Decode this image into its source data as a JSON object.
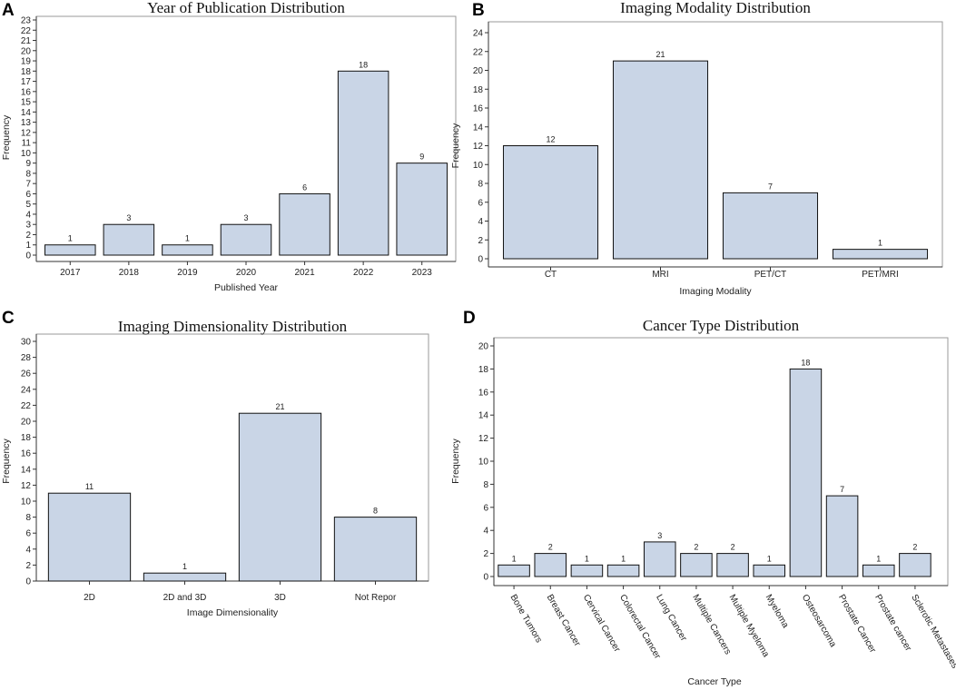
{
  "chart_data": [
    {
      "panel": "A",
      "type": "bar",
      "title": "Year of Publication Distribution",
      "xlabel": "Published Year",
      "ylabel": "Frequency",
      "categories": [
        "2017",
        "2018",
        "2019",
        "2020",
        "2021",
        "2022",
        "2023"
      ],
      "values": [
        1,
        3,
        1,
        3,
        6,
        18,
        9
      ],
      "ylim": [
        0,
        23
      ],
      "yticks": [
        0,
        1,
        2,
        3,
        4,
        5,
        6,
        7,
        8,
        9,
        10,
        11,
        12,
        13,
        14,
        15,
        16,
        17,
        18,
        19,
        20,
        21,
        22,
        23
      ],
      "rotate_x": false
    },
    {
      "panel": "B",
      "type": "bar",
      "title": "Imaging Modality Distribution",
      "xlabel": "Imaging Modality",
      "ylabel": "Frequency",
      "categories": [
        "CT",
        "MRI",
        "PET/CT",
        "PET/MRI"
      ],
      "values": [
        12,
        21,
        7,
        1
      ],
      "ylim": [
        0,
        24
      ],
      "yticks": [
        0,
        2,
        4,
        6,
        8,
        10,
        12,
        14,
        16,
        18,
        20,
        22,
        24
      ],
      "rotate_x": false
    },
    {
      "panel": "C",
      "type": "bar",
      "title": "Imaging Dimensionality Distribution",
      "xlabel": "Image Dimensionality",
      "ylabel": "Frequency",
      "categories": [
        "2D",
        "2D and 3D",
        "3D",
        "Not Repor"
      ],
      "values": [
        11,
        1,
        21,
        8
      ],
      "ylim": [
        0,
        30
      ],
      "yticks": [
        0,
        2,
        4,
        6,
        8,
        10,
        12,
        14,
        16,
        18,
        20,
        22,
        24,
        26,
        28,
        30
      ],
      "rotate_x": false
    },
    {
      "panel": "D",
      "type": "bar",
      "title": "Cancer Type Distribution",
      "xlabel": "Cancer Type",
      "ylabel": "Frequency",
      "categories": [
        "Bone Tumors",
        "Breast Cancer",
        "Cervical Cancer",
        "Colorectal Cancer",
        "Lung Cancer",
        "Multiple Cancers",
        "Multiple Myeloma",
        "Myeloma",
        "Osteosarcoma",
        "Prostate Cancer",
        "Prostate cancer",
        "Sclerotic Metastases"
      ],
      "values": [
        1,
        2,
        1,
        1,
        3,
        2,
        2,
        1,
        18,
        7,
        1,
        2
      ],
      "ylim": [
        0,
        20
      ],
      "yticks": [
        0,
        2,
        4,
        6,
        8,
        10,
        12,
        14,
        16,
        18,
        20
      ],
      "rotate_x": true
    }
  ]
}
